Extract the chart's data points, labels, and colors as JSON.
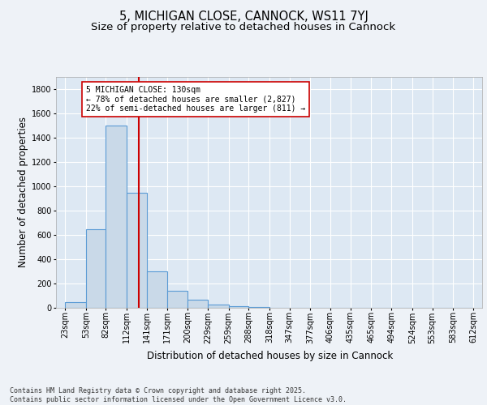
{
  "title": "5, MICHIGAN CLOSE, CANNOCK, WS11 7YJ",
  "subtitle": "Size of property relative to detached houses in Cannock",
  "xlabel": "Distribution of detached houses by size in Cannock",
  "ylabel": "Number of detached properties",
  "bar_left_edges": [
    23,
    53,
    82,
    112,
    141,
    171,
    200,
    229,
    259,
    288,
    318,
    347,
    377,
    406,
    435,
    465,
    494,
    524,
    553,
    583
  ],
  "bar_widths": [
    30,
    29,
    30,
    29,
    30,
    29,
    29,
    30,
    29,
    30,
    29,
    30,
    29,
    29,
    30,
    29,
    30,
    29,
    30,
    29
  ],
  "bar_heights": [
    50,
    650,
    1500,
    950,
    300,
    140,
    70,
    25,
    15,
    5,
    3,
    2,
    1,
    0,
    0,
    0,
    0,
    0,
    0,
    0
  ],
  "bar_color": "#c9d9e8",
  "bar_edge_color": "#5b9bd5",
  "bar_edge_width": 0.8,
  "ylim": [
    0,
    1900
  ],
  "yticks": [
    0,
    200,
    400,
    600,
    800,
    1000,
    1200,
    1400,
    1600,
    1800
  ],
  "x_tick_labels": [
    "23sqm",
    "53sqm",
    "82sqm",
    "112sqm",
    "141sqm",
    "171sqm",
    "200sqm",
    "229sqm",
    "259sqm",
    "288sqm",
    "318sqm",
    "347sqm",
    "377sqm",
    "406sqm",
    "435sqm",
    "465sqm",
    "494sqm",
    "524sqm",
    "553sqm",
    "583sqm",
    "612sqm"
  ],
  "x_tick_positions": [
    23,
    53,
    82,
    112,
    141,
    171,
    200,
    229,
    259,
    288,
    318,
    347,
    377,
    406,
    435,
    465,
    494,
    524,
    553,
    583,
    612
  ],
  "red_line_x": 130,
  "red_line_color": "#cc0000",
  "annotation_text": "5 MICHIGAN CLOSE: 130sqm\n← 78% of detached houses are smaller (2,827)\n22% of semi-detached houses are larger (811) →",
  "bg_color": "#eef2f7",
  "plot_bg_color": "#dde8f3",
  "grid_color": "#ffffff",
  "footer_text": "Contains HM Land Registry data © Crown copyright and database right 2025.\nContains public sector information licensed under the Open Government Licence v3.0.",
  "title_fontsize": 10.5,
  "subtitle_fontsize": 9.5,
  "axis_label_fontsize": 8.5,
  "tick_fontsize": 7,
  "annotation_fontsize": 7,
  "footer_fontsize": 6
}
